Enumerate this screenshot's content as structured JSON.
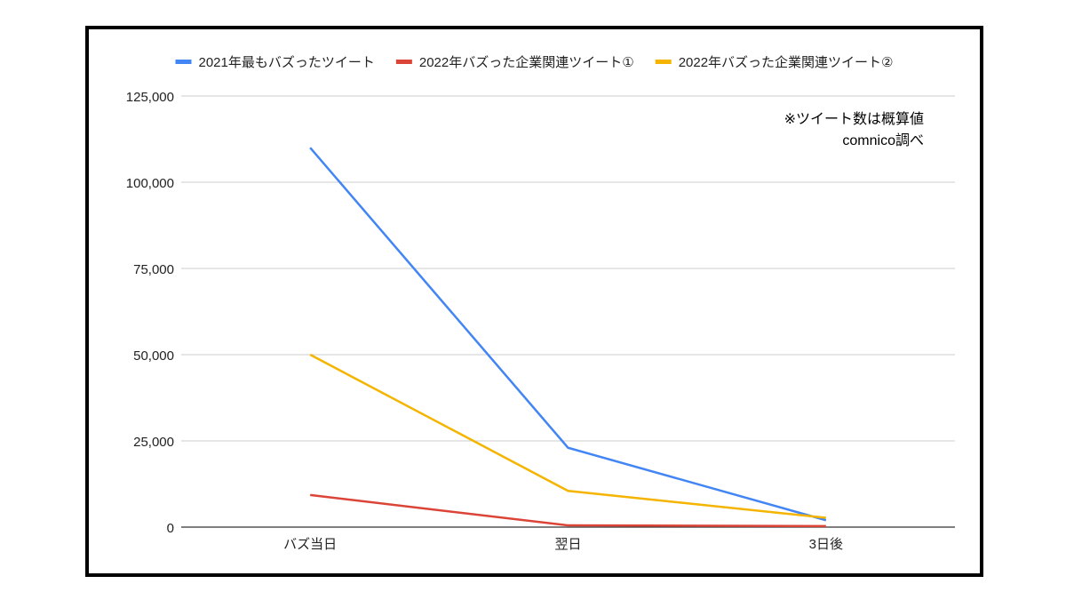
{
  "chart_data": {
    "type": "line",
    "title": "",
    "xlabel": "",
    "ylabel": "",
    "categories": [
      "バズ当日",
      "翌日",
      "3日後"
    ],
    "ylim": [
      0,
      125000
    ],
    "yticks": [
      0,
      25000,
      50000,
      75000,
      100000,
      125000
    ],
    "ytick_labels": [
      "0",
      "25,000",
      "50,000",
      "75,000",
      "100,000",
      "125,000"
    ],
    "grid": true,
    "legend_position": "top",
    "series": [
      {
        "name": "2021年最もバズったツイート",
        "color": "#4285f4",
        "values": [
          110000,
          23000,
          2000
        ]
      },
      {
        "name": "2022年バズった企業関連ツイート①",
        "color": "#db4437",
        "values": [
          9300,
          500,
          300
        ]
      },
      {
        "name": "2022年バズった企業関連ツイート②",
        "color": "#f4b400",
        "values": [
          50000,
          10500,
          2700
        ]
      }
    ],
    "annotation": [
      "※ツイート数は概算値",
      "comnico調べ"
    ]
  }
}
